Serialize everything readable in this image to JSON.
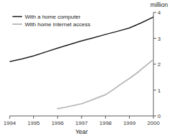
{
  "chart_data": {
    "type": "line",
    "xlabel": "Year",
    "ylabel": "million",
    "xlim": [
      1994,
      2000
    ],
    "ylim": [
      0,
      4
    ],
    "xticks": [
      1994,
      1995,
      1996,
      1997,
      1998,
      1999,
      2000
    ],
    "yticks": [
      0,
      1,
      2,
      3,
      4
    ],
    "grid": false,
    "legend": "upper-left",
    "series": [
      {
        "name": "With a home computer",
        "color": "#1a1a1a",
        "x": [
          1994,
          1994.5,
          1995,
          1995.5,
          1996,
          1996.5,
          1997,
          1997.5,
          1998,
          1998.5,
          1999,
          1999.5,
          2000
        ],
        "values": [
          2.1,
          2.2,
          2.32,
          2.47,
          2.62,
          2.76,
          2.9,
          3.02,
          3.15,
          3.27,
          3.4,
          3.6,
          3.82
        ]
      },
      {
        "name": "With home Internet access",
        "color": "#bbbbbb",
        "x": [
          1996,
          1996.3,
          1996.6,
          1997,
          1997.3,
          1997.6,
          1998,
          1998.3,
          1998.6,
          1999,
          1999.3,
          1999.6,
          2000
        ],
        "values": [
          0.28,
          0.33,
          0.39,
          0.47,
          0.57,
          0.68,
          0.82,
          1.0,
          1.2,
          1.45,
          1.65,
          1.88,
          2.18
        ]
      }
    ]
  }
}
